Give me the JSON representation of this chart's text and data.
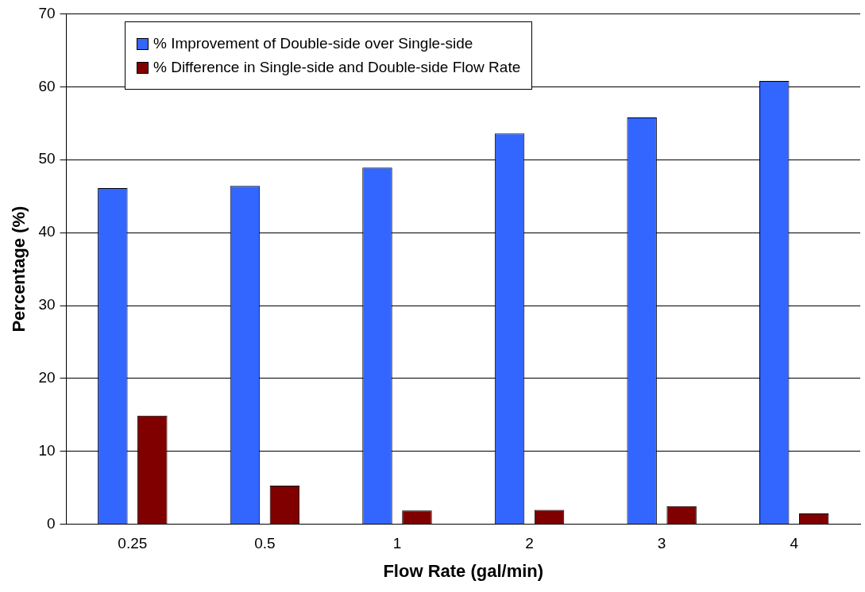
{
  "chart_data": {
    "type": "bar",
    "xlabel": "Flow Rate (gal/min)",
    "ylabel": "Percentage (%)",
    "categories": [
      "0.25",
      "0.5",
      "1",
      "2",
      "3",
      "4"
    ],
    "series": [
      {
        "name": "% Improvement of Double-side over Single-side",
        "color": "#3366ff",
        "values": [
          46.1,
          46.4,
          48.9,
          53.6,
          55.8,
          60.8
        ]
      },
      {
        "name": "% Difference in Single-side and Double-side Flow Rate",
        "color": "#800000",
        "values": [
          14.9,
          5.3,
          1.9,
          2.0,
          2.5,
          1.5
        ]
      }
    ],
    "ylim": [
      0,
      70
    ],
    "yticks": [
      0,
      10,
      20,
      30,
      40,
      50,
      60,
      70
    ],
    "grid": "y",
    "legend": "top left"
  }
}
